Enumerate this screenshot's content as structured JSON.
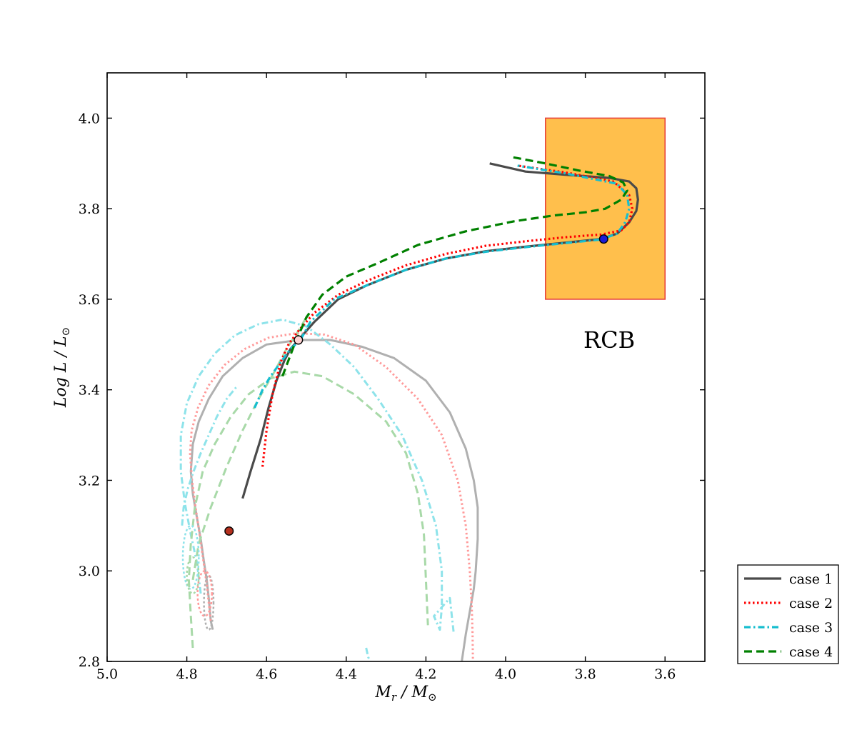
{
  "chart_data": {
    "type": "line",
    "xlabel": "M_r / M_⊙",
    "xlabel_main": "M",
    "xlabel_sub": "r",
    "xlabel_rest": " / M",
    "xlabel_sun": "⊙",
    "ylabel": "Log L / L_⊙",
    "ylabel_main": "Log L / L",
    "ylabel_sun": "⊙",
    "xlim": [
      5.0,
      3.5
    ],
    "ylim": [
      2.8,
      4.1
    ],
    "x_ticks": [
      "5.0",
      "4.8",
      "4.6",
      "4.4",
      "4.2",
      "4.0",
      "3.8",
      "3.6"
    ],
    "y_ticks": [
      "2.8",
      "3.0",
      "3.2",
      "3.4",
      "3.6",
      "3.8",
      "4.0"
    ],
    "grid": false,
    "legend_position": "outside-bottom-right",
    "annotation": {
      "text": "RCB",
      "x": 3.74,
      "y": 3.51
    },
    "rcb_box": {
      "x0": 3.9,
      "x1": 3.6,
      "y0": 3.6,
      "y1": 4.0,
      "fill": "#ffbf4c",
      "edge": "#e8453c"
    },
    "colors": {
      "case1": "#4a4a4a",
      "case2": "#ff0000",
      "case3": "#17becf",
      "case4": "#008000",
      "faint1": "#b0b0b0"
    },
    "series": [
      {
        "name": "case 1",
        "style": "solid",
        "color": "#4a4a4a",
        "x": [
          4.66,
          4.64,
          4.615,
          4.595,
          4.575,
          4.555,
          4.54,
          4.52,
          4.48,
          4.42,
          4.35,
          4.25,
          4.15,
          4.05,
          3.95,
          3.85,
          3.76,
          3.72,
          3.69,
          3.672,
          3.668,
          3.672,
          3.69,
          3.74,
          3.85,
          3.95,
          4.04
        ],
        "y": [
          3.16,
          3.22,
          3.29,
          3.36,
          3.42,
          3.465,
          3.49,
          3.51,
          3.55,
          3.6,
          3.63,
          3.665,
          3.69,
          3.706,
          3.716,
          3.725,
          3.733,
          3.745,
          3.77,
          3.795,
          3.82,
          3.845,
          3.86,
          3.868,
          3.875,
          3.882,
          3.9
        ]
      },
      {
        "name": "case 2",
        "style": "dotted",
        "color": "#ff0000",
        "x": [
          4.61,
          4.6,
          4.585,
          4.565,
          4.545,
          4.52,
          4.48,
          4.42,
          4.35,
          4.25,
          4.15,
          4.05,
          3.95,
          3.85,
          3.76,
          3.71,
          3.69,
          3.682,
          3.69,
          3.73,
          3.85,
          3.97
        ],
        "y": [
          3.23,
          3.31,
          3.39,
          3.46,
          3.5,
          3.53,
          3.57,
          3.61,
          3.64,
          3.675,
          3.7,
          3.718,
          3.728,
          3.737,
          3.743,
          3.752,
          3.77,
          3.8,
          3.83,
          3.86,
          3.88,
          3.895
        ]
      },
      {
        "name": "case 3",
        "style": "dashdot",
        "color": "#17becf",
        "x": [
          4.63,
          4.61,
          4.59,
          4.565,
          4.54,
          4.515,
          4.49,
          4.43,
          4.35,
          4.25,
          4.15,
          4.05,
          3.95,
          3.85,
          3.76,
          3.72,
          3.7,
          3.69,
          3.695,
          3.72,
          3.85,
          3.97
        ],
        "y": [
          3.36,
          3.4,
          3.43,
          3.46,
          3.49,
          3.51,
          3.55,
          3.6,
          3.63,
          3.665,
          3.69,
          3.705,
          3.715,
          3.724,
          3.732,
          3.745,
          3.77,
          3.8,
          3.83,
          3.855,
          3.878,
          3.895
        ]
      },
      {
        "name": "case 4",
        "style": "dashed",
        "color": "#008000",
        "x": [
          4.56,
          4.53,
          4.5,
          4.46,
          4.4,
          4.32,
          4.22,
          4.1,
          3.98,
          3.88,
          3.8,
          3.75,
          3.71,
          3.695,
          3.705,
          3.74,
          3.82,
          3.9,
          3.99
        ],
        "y": [
          3.43,
          3.5,
          3.56,
          3.61,
          3.65,
          3.68,
          3.72,
          3.75,
          3.772,
          3.785,
          3.792,
          3.8,
          3.82,
          3.84,
          3.858,
          3.872,
          3.885,
          3.9,
          3.915
        ]
      }
    ],
    "faint_tracks": [
      {
        "style": "solid",
        "color": "#b0b0b0",
        "x": [
          4.735,
          4.74,
          4.745,
          4.75,
          4.757,
          4.765,
          4.775,
          4.785,
          4.79,
          4.785,
          4.77,
          4.745,
          4.71,
          4.66,
          4.6,
          4.52,
          4.44,
          4.36,
          4.28,
          4.2,
          4.14,
          4.1,
          4.08,
          4.07,
          4.07,
          4.075,
          4.08,
          4.09,
          4.1,
          4.11
        ],
        "y": [
          2.87,
          2.89,
          2.94,
          2.98,
          3.02,
          3.07,
          3.12,
          3.17,
          3.22,
          3.28,
          3.33,
          3.38,
          3.43,
          3.47,
          3.5,
          3.51,
          3.51,
          3.495,
          3.47,
          3.42,
          3.35,
          3.27,
          3.2,
          3.14,
          3.07,
          3.0,
          2.96,
          2.91,
          2.86,
          2.8
        ]
      },
      {
        "style": "dotted",
        "color": "#ff9a9a",
        "x": [
          4.74,
          4.745,
          4.75,
          4.758,
          4.768,
          4.778,
          4.787,
          4.792,
          4.788,
          4.772,
          4.745,
          4.705,
          4.655,
          4.595,
          4.525,
          4.455,
          4.38,
          4.3,
          4.22,
          4.16,
          4.12,
          4.1,
          4.09,
          4.085,
          4.083,
          4.082
        ],
        "y": [
          2.89,
          2.93,
          2.97,
          3.02,
          3.08,
          3.14,
          3.2,
          3.26,
          3.31,
          3.36,
          3.41,
          3.455,
          3.49,
          3.515,
          3.525,
          3.522,
          3.5,
          3.45,
          3.38,
          3.3,
          3.2,
          3.1,
          3.0,
          2.92,
          2.86,
          2.8
        ]
      },
      {
        "style": "dashdot",
        "color": "#8ee3ea",
        "x": [
          4.765,
          4.775,
          4.79,
          4.805,
          4.815,
          4.815,
          4.8,
          4.77,
          4.73,
          4.68,
          4.62,
          4.56,
          4.5,
          4.44,
          4.38,
          4.32,
          4.26,
          4.21,
          4.175,
          4.16,
          4.16,
          4.165,
          4.18,
          4.14,
          4.13
        ],
        "y": [
          2.95,
          3.02,
          3.08,
          3.15,
          3.22,
          3.3,
          3.37,
          3.43,
          3.48,
          3.52,
          3.545,
          3.555,
          3.54,
          3.5,
          3.45,
          3.38,
          3.3,
          3.2,
          3.1,
          3.0,
          2.92,
          2.87,
          2.9,
          2.94,
          2.86
        ]
      },
      {
        "style": "dashed",
        "color": "#a8d9a8",
        "x": [
          4.785,
          4.79,
          4.795,
          4.79,
          4.78,
          4.76,
          4.73,
          4.69,
          4.645,
          4.59,
          4.53,
          4.46,
          4.38,
          4.3,
          4.25,
          4.22,
          4.205,
          4.2,
          4.195
        ],
        "y": [
          2.83,
          2.9,
          2.98,
          3.06,
          3.14,
          3.22,
          3.28,
          3.34,
          3.39,
          3.425,
          3.44,
          3.43,
          3.39,
          3.33,
          3.26,
          3.17,
          3.08,
          2.98,
          2.88
        ]
      },
      {
        "style": "dashed",
        "color": "#a8d9a8",
        "x": [
          4.785,
          4.77,
          4.74,
          4.7,
          4.66,
          4.62,
          4.58,
          4.55,
          4.52,
          4.5
        ],
        "y": [
          2.98,
          3.06,
          3.14,
          3.23,
          3.31,
          3.38,
          3.44,
          3.49,
          3.53,
          3.56
        ]
      },
      {
        "style": "dashdot",
        "color": "#8ee3ea",
        "x": [
          4.812,
          4.808,
          4.798,
          4.783,
          4.765,
          4.745,
          4.725,
          4.7,
          4.672
        ],
        "y": [
          3.1,
          3.14,
          3.18,
          3.22,
          3.26,
          3.3,
          3.34,
          3.38,
          3.41
        ]
      },
      {
        "style": "dashdot",
        "color": "#8ee3ea",
        "x": [
          4.35,
          4.345,
          4.34
        ],
        "y": [
          2.83,
          2.81,
          2.8
        ]
      }
    ],
    "noise_blobs": [
      {
        "color": "#b0b0b0",
        "x": 4.745,
        "y": 2.93,
        "rx": 0.012,
        "ry": 0.06
      },
      {
        "color": "#ff9a9a",
        "x": 4.755,
        "y": 2.95,
        "rx": 0.018,
        "ry": 0.05
      },
      {
        "color": "#8ee3ea",
        "x": 4.79,
        "y": 3.03,
        "rx": 0.02,
        "ry": 0.07
      },
      {
        "color": "#a8d9a8",
        "x": 4.785,
        "y": 2.99,
        "rx": 0.015,
        "ry": 0.04
      }
    ],
    "markers": [
      {
        "x": 4.694,
        "y": 3.088,
        "fill": "#b5301e",
        "label": ""
      },
      {
        "x": 4.52,
        "y": 3.51,
        "fill": "#ffd3d3",
        "label": ""
      },
      {
        "x": 3.754,
        "y": 3.733,
        "fill": "#1b1bd6",
        "label": ""
      }
    ]
  }
}
